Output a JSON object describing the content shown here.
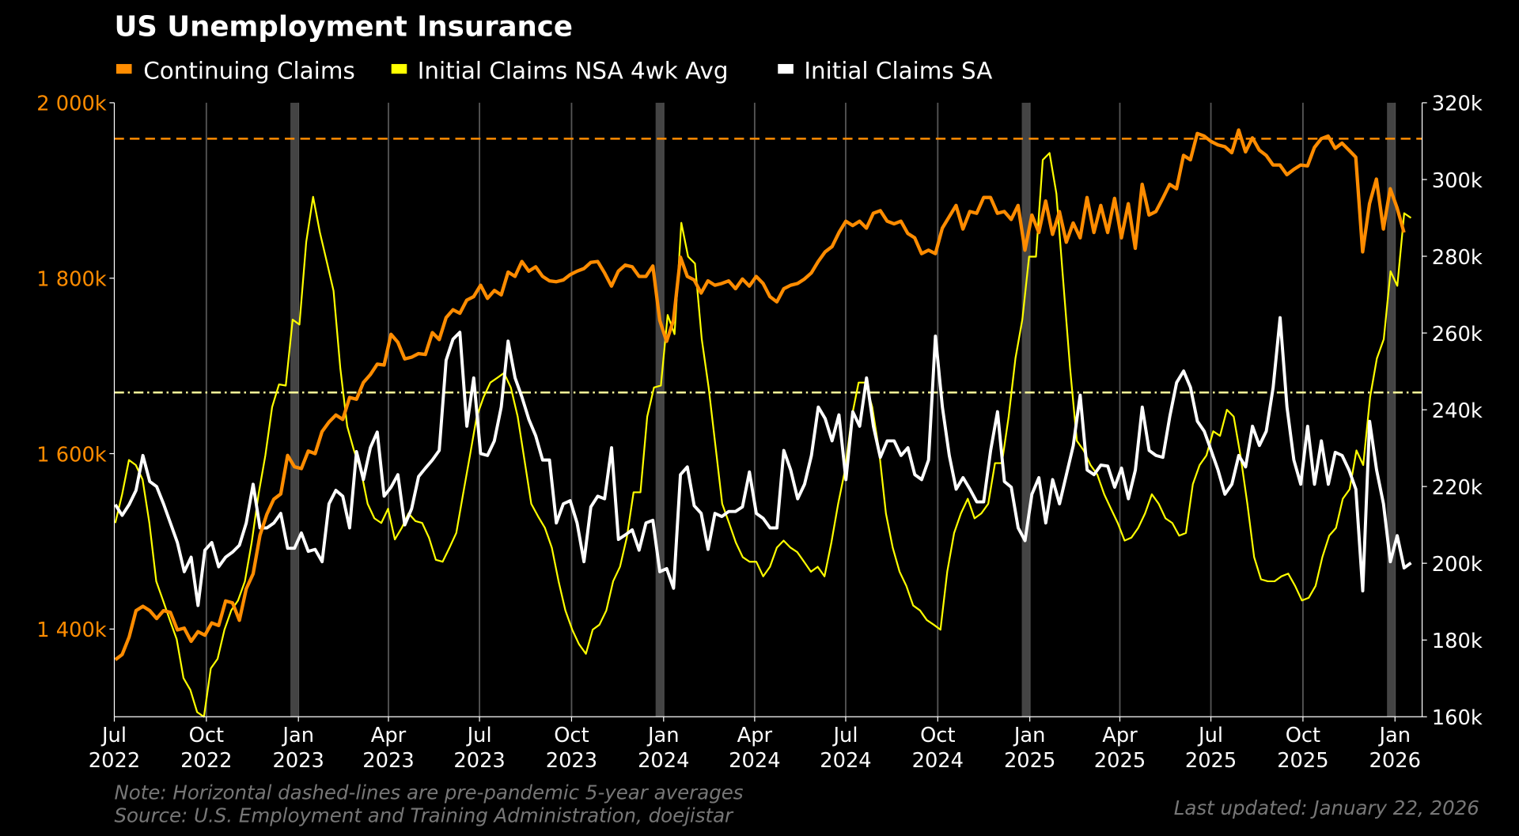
{
  "title": "US Unemployment Insurance",
  "legend": [
    {
      "label": "Continuing Claims",
      "color": "#ff8c00"
    },
    {
      "label": "Initial Claims NSA 4wk Avg",
      "color": "#ffff00"
    },
    {
      "label": "Initial Claims SA",
      "color": "#ffffff"
    }
  ],
  "footer": {
    "note": "Note: Horizontal dashed-lines are pre-pandemic 5-year averages",
    "source": "Source: U.S. Employment and Training Administration, doejistar",
    "updated": "Last updated: January 22, 2026"
  },
  "chart_data": {
    "type": "line",
    "title": "US Unemployment Insurance",
    "x_range": [
      "2022-07-01",
      "2026-01-31"
    ],
    "x_ticks": [
      {
        "date": "2022-07-01",
        "label": [
          "Jul",
          "2022"
        ]
      },
      {
        "date": "2022-10-01",
        "label": [
          "Oct",
          "2022"
        ]
      },
      {
        "date": "2023-01-01",
        "label": [
          "Jan",
          "2023"
        ]
      },
      {
        "date": "2023-04-01",
        "label": [
          "Apr",
          "2023"
        ]
      },
      {
        "date": "2023-07-01",
        "label": [
          "Jul",
          "2023"
        ]
      },
      {
        "date": "2023-10-01",
        "label": [
          "Oct",
          "2023"
        ]
      },
      {
        "date": "2024-01-01",
        "label": [
          "Jan",
          "2024"
        ]
      },
      {
        "date": "2024-04-01",
        "label": [
          "Apr",
          "2024"
        ]
      },
      {
        "date": "2024-07-01",
        "label": [
          "Jul",
          "2024"
        ]
      },
      {
        "date": "2024-10-01",
        "label": [
          "Oct",
          "2024"
        ]
      },
      {
        "date": "2025-01-01",
        "label": [
          "Jan",
          "2025"
        ]
      },
      {
        "date": "2025-04-01",
        "label": [
          "Apr",
          "2025"
        ]
      },
      {
        "date": "2025-07-01",
        "label": [
          "Jul",
          "2025"
        ]
      },
      {
        "date": "2025-10-01",
        "label": [
          "Oct",
          "2025"
        ]
      },
      {
        "date": "2026-01-01",
        "label": [
          "Jan",
          "2026"
        ]
      }
    ],
    "left_axis": {
      "ylim": [
        1300,
        2000
      ],
      "ticks": [
        2000,
        1800,
        1600,
        1400
      ],
      "tick_labels": [
        "2 000k",
        "1 800k",
        "1 600k",
        "1 400k"
      ],
      "color": "#ff8c00"
    },
    "right_axis": {
      "ylim": [
        160,
        320
      ],
      "ticks": [
        320,
        300,
        280,
        260,
        240,
        220,
        200,
        180,
        160
      ],
      "tick_labels": [
        "320k",
        "300k",
        "280k",
        "260k",
        "240k",
        "220k",
        "200k",
        "180k",
        "160k"
      ],
      "color": "#ffffff"
    },
    "shaded_periods": [
      [
        "2022-12-24",
        "2023-01-01"
      ],
      [
        "2023-12-24",
        "2024-01-01"
      ],
      [
        "2024-12-24",
        "2025-01-01"
      ],
      [
        "2025-12-24",
        "2026-01-01"
      ]
    ],
    "reference_lines": [
      {
        "series": "Continuing Claims",
        "axis": "left",
        "value": 1959,
        "style": "dashed",
        "color": "#ff8c00"
      },
      {
        "series": "Initial Claims",
        "axis": "right",
        "value": 244.5,
        "style": "dashdot",
        "color": "#ffff99"
      }
    ],
    "series": [
      {
        "name": "Initial Claims NSA 4wk Avg",
        "axis": "right",
        "color": "#ffff00",
        "unit": "k",
        "start_date": "2022-07-02",
        "end_date": "2026-01-17",
        "values": [
          210.5,
          218,
          226.9,
          225.6,
          221.8,
          210.5,
          195.3,
          190.3,
          185.2,
          180.2,
          170.1,
          167,
          161.2,
          160,
          172.6,
          175.1,
          182.7,
          187.7,
          190.3,
          195.3,
          205.4,
          218,
          228.1,
          240.7,
          246.6,
          246.3,
          263.5,
          262.2,
          283.7,
          295.5,
          286.2,
          278.6,
          271,
          250.8,
          235.7,
          229.4,
          224.3,
          215.5,
          211.7,
          210.5,
          214.2,
          206.2,
          209.2,
          213,
          211,
          210.5,
          206.7,
          200.9,
          200.4,
          204.1,
          207.9,
          218,
          228.1,
          238.2,
          243.3,
          247.1,
          248.3,
          249.6,
          245.8,
          238.2,
          226.9,
          215.5,
          212.2,
          209.2,
          204.1,
          195.3,
          187.7,
          182.7,
          178.9,
          176.4,
          182.7,
          184,
          187.7,
          195.3,
          199.1,
          206.7,
          218.5,
          218.5,
          238.2,
          245.8,
          246.3,
          264.7,
          259.7,
          288.7,
          279.9,
          278.1,
          258.4,
          245.8,
          230.7,
          215.5,
          210.5,
          205.4,
          201.6,
          200.4,
          200.4,
          196.6,
          199.1,
          204.1,
          205.9,
          204.1,
          202.9,
          200.4,
          197.8,
          199.1,
          196.6,
          205.4,
          215.5,
          224.3,
          238.2,
          247.1,
          247.1,
          240.7,
          229.4,
          213,
          204.1,
          197.8,
          194.1,
          189,
          187.7,
          185.2,
          184,
          182.7,
          197.8,
          207.9,
          213,
          216.8,
          211.7,
          213,
          215.5,
          226.1,
          226.1,
          238.2,
          253.4,
          263.5,
          279.9,
          279.9,
          305.1,
          306.9,
          296.3,
          273.6,
          250.8,
          231.9,
          229.4,
          225.6,
          223.1,
          218,
          214.2,
          210.5,
          205.9,
          206.7,
          209.2,
          213,
          218,
          215.5,
          211.7,
          210.5,
          207.2,
          207.9,
          220.6,
          225.6,
          228.1,
          234.4,
          233.2,
          240,
          238.2,
          228.1,
          215.5,
          201.6,
          195.8,
          195.3,
          195.3,
          196.6,
          197.3,
          194.1,
          190.3,
          191,
          194.1,
          201.6,
          207.2,
          209.2,
          216.8,
          219.3,
          229.4,
          225.6,
          243.3,
          253.4,
          258.4,
          276.1,
          272.3,
          291.2,
          290
        ]
      },
      {
        "name": "Initial Claims SA",
        "axis": "right",
        "color": "#ffffff",
        "unit": "k",
        "start_date": "2022-07-02",
        "end_date": "2026-01-17",
        "values": [
          215.3,
          212.5,
          215.3,
          219,
          228.1,
          221.3,
          220,
          215.5,
          210.5,
          205.4,
          197.8,
          201.6,
          189,
          203.4,
          205.4,
          199.1,
          201.6,
          202.9,
          204.7,
          210.5,
          220.6,
          209.2,
          209.2,
          210.5,
          213,
          203.9,
          203.9,
          207.9,
          203.1,
          203.6,
          200.4,
          215.5,
          219,
          217.5,
          209.2,
          229.1,
          221.8,
          230.1,
          234.2,
          217.5,
          219.8,
          223.1,
          210,
          214.2,
          222.6,
          224.8,
          226.9,
          229.4,
          252.9,
          258.4,
          260.2,
          235.7,
          248.3,
          228.6,
          228.1,
          231.9,
          240.7,
          257.9,
          248.3,
          243.3,
          237.5,
          233.2,
          226.9,
          226.9,
          210.5,
          215.5,
          216.3,
          210.5,
          200.4,
          214.7,
          217.5,
          216.8,
          230.1,
          206.2,
          207.4,
          208.7,
          203.4,
          210.5,
          211.2,
          197.8,
          198.6,
          193.5,
          223.1,
          225.1,
          215,
          213,
          203.6,
          213,
          212.2,
          213.5,
          213.5,
          214.7,
          223.8,
          213,
          211.7,
          209.2,
          209.2,
          229.4,
          224.3,
          216.8,
          220.6,
          228.1,
          240.7,
          237.7,
          231.9,
          238.7,
          221.8,
          239.5,
          235.7,
          248.3,
          235.7,
          227.6,
          231.9,
          231.9,
          228.1,
          230.1,
          223.1,
          221.8,
          226.9,
          259.2,
          240.7,
          228.1,
          219.3,
          222.3,
          219.3,
          216,
          216,
          229.4,
          239.5,
          221.3,
          219.8,
          209.2,
          205.9,
          218,
          222.3,
          210.5,
          221.8,
          215.5,
          223.1,
          230.7,
          243.8,
          224.3,
          223.1,
          225.6,
          225.3,
          219.8,
          224.8,
          216.8,
          224.3,
          240.7,
          229.4,
          228.1,
          227.6,
          238.2,
          247.1,
          250.1,
          245.8,
          237,
          234.4,
          229.4,
          224.3,
          218,
          220.6,
          228.1,
          225.1,
          235.7,
          230.7,
          234.4,
          245.8,
          264,
          240.7,
          226.9,
          220.6,
          235.7,
          220.6,
          231.9,
          220.6,
          228.9,
          228.1,
          224.3,
          219.3,
          192.8,
          237,
          224.3,
          215.5,
          200.4,
          207.2,
          198.8,
          200.1
        ]
      },
      {
        "name": "Continuing Claims",
        "axis": "left",
        "color": "#ff8c00",
        "unit": "k",
        "start_date": "2022-07-02",
        "end_date": "2026-01-10",
        "values": [
          1365,
          1371,
          1391,
          1421,
          1426,
          1421,
          1412,
          1421,
          1419,
          1399,
          1401,
          1386,
          1397,
          1393,
          1407,
          1404,
          1432,
          1430,
          1410,
          1446,
          1463,
          1507,
          1531,
          1548,
          1554,
          1598,
          1585,
          1583,
          1603,
          1600,
          1625,
          1636,
          1644,
          1639,
          1664,
          1662,
          1681,
          1690,
          1702,
          1701,
          1736,
          1727,
          1708,
          1710,
          1714,
          1713,
          1738,
          1730,
          1755,
          1764,
          1760,
          1775,
          1779,
          1792,
          1777,
          1786,
          1781,
          1807,
          1802,
          1819,
          1808,
          1813,
          1802,
          1797,
          1796,
          1798,
          1804,
          1808,
          1811,
          1818,
          1819,
          1806,
          1791,
          1808,
          1815,
          1813,
          1802,
          1802,
          1814,
          1752,
          1728,
          1752,
          1824,
          1802,
          1798,
          1783,
          1797,
          1792,
          1794,
          1797,
          1788,
          1799,
          1791,
          1802,
          1794,
          1779,
          1773,
          1788,
          1792,
          1794,
          1799,
          1806,
          1819,
          1830,
          1836,
          1852,
          1865,
          1860,
          1865,
          1857,
          1874,
          1877,
          1865,
          1862,
          1865,
          1851,
          1846,
          1828,
          1832,
          1828,
          1857,
          1870,
          1883,
          1856,
          1876,
          1874,
          1892,
          1892,
          1874,
          1876,
          1867,
          1883,
          1832,
          1872,
          1852,
          1888,
          1850,
          1876,
          1841,
          1863,
          1846,
          1892,
          1852,
          1883,
          1852,
          1891,
          1846,
          1885,
          1834,
          1907,
          1872,
          1876,
          1891,
          1907,
          1902,
          1940,
          1935,
          1965,
          1962,
          1956,
          1952,
          1950,
          1943,
          1969,
          1944,
          1960,
          1946,
          1940,
          1929,
          1929,
          1918,
          1924,
          1929,
          1928,
          1949,
          1959,
          1962,
          1948,
          1954,
          1946,
          1938,
          1830,
          1885,
          1913,
          1856,
          1902,
          1880,
          1852
        ]
      }
    ]
  }
}
